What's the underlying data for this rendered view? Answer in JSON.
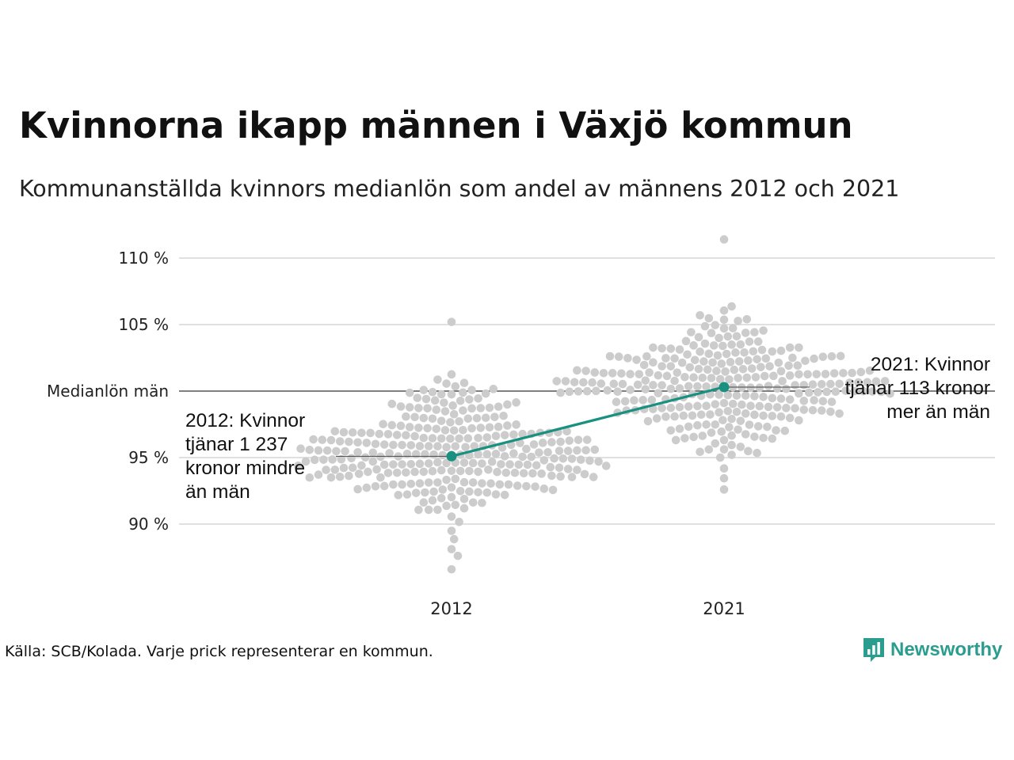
{
  "title": "Kvinnorna ikapp männen i Växjö kommun",
  "subtitle": "Kommunanställda kvinnors medianlön som andel av männens 2012 och 2021",
  "source": "Källa: SCB/Kolada. Varje prick representerar en kommun.",
  "brand": {
    "name": "Newsworthy",
    "icon": "newsworthy-logo-icon",
    "color": "#2a9d8f"
  },
  "colors": {
    "dots": "#cccccc",
    "highlight": "#1a9080",
    "grid": "#e0e0e0",
    "reference_line": "#333333"
  },
  "chart_data": {
    "type": "scatter",
    "title": "Kvinnorna ikapp männen i Växjö kommun",
    "subtitle": "Kommunanställda kvinnors medianlön som andel av männens 2012 och 2021",
    "x_categories": [
      "2012",
      "2021"
    ],
    "y_ticks": [
      90,
      95,
      105,
      110
    ],
    "y_tick_labels": [
      "90 %",
      "95 %",
      "105 %",
      "110 %"
    ],
    "ylim": [
      85.3,
      112.4
    ],
    "grid": true,
    "reference_line": {
      "value": 100,
      "label": "Medianlön män"
    },
    "highlight_series": {
      "name": "Växjö kommun",
      "values": [
        {
          "x": "2012",
          "y": 95.1
        },
        {
          "x": "2021",
          "y": 100.3
        }
      ]
    },
    "annotations": [
      {
        "x": "2012",
        "lines": [
          "2012: Kvinnor",
          "tjänar 1 237",
          "kronor mindre",
          "än män"
        ]
      },
      {
        "x": "2021",
        "lines": [
          "2021: Kvinnor",
          "tjänar 113 kronor",
          "mer än män"
        ]
      }
    ],
    "distributions": {
      "2012": {
        "count": 290,
        "median": 95.2,
        "min": 86.6,
        "max": 105.2
      },
      "2021": {
        "count": 290,
        "median": 100.3,
        "min": 92.6,
        "max": 111.4
      }
    }
  }
}
